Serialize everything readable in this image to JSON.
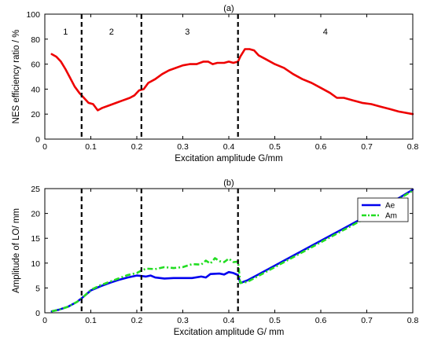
{
  "chart_data": [
    {
      "type": "line",
      "title": "(a)",
      "xlabel": "Excitation amplitude G/mm",
      "ylabel": "NES efficiency ratio / %",
      "xlim": [
        0,
        0.8
      ],
      "ylim": [
        0,
        100
      ],
      "xticks": [
        "0",
        "0.1",
        "0.2",
        "0.3",
        "0.4",
        "0.5",
        "0.6",
        "0.7",
        "0.8"
      ],
      "yticks": [
        "0",
        "20",
        "40",
        "60",
        "80",
        "100"
      ],
      "grid": false,
      "region_boundaries": [
        0.08,
        0.21,
        0.42
      ],
      "region_labels": [
        {
          "text": "1",
          "x": 0.045
        },
        {
          "text": "2",
          "x": 0.145
        },
        {
          "text": "3",
          "x": 0.31
        },
        {
          "text": "4",
          "x": 0.61
        }
      ],
      "series": [
        {
          "color": "#ee0000",
          "style": "solid",
          "points": [
            [
              0.015,
              68
            ],
            [
              0.025,
              66
            ],
            [
              0.035,
              62
            ],
            [
              0.045,
              56
            ],
            [
              0.055,
              49
            ],
            [
              0.065,
              42
            ],
            [
              0.075,
              37
            ],
            [
              0.085,
              33
            ],
            [
              0.095,
              29
            ],
            [
              0.105,
              28
            ],
            [
              0.115,
              23
            ],
            [
              0.125,
              25
            ],
            [
              0.14,
              27
            ],
            [
              0.155,
              29
            ],
            [
              0.17,
              31
            ],
            [
              0.185,
              33
            ],
            [
              0.195,
              35
            ],
            [
              0.205,
              39
            ],
            [
              0.215,
              40
            ],
            [
              0.225,
              45
            ],
            [
              0.24,
              48
            ],
            [
              0.255,
              52
            ],
            [
              0.27,
              55
            ],
            [
              0.285,
              57
            ],
            [
              0.3,
              59
            ],
            [
              0.315,
              60
            ],
            [
              0.33,
              60
            ],
            [
              0.345,
              62
            ],
            [
              0.355,
              62
            ],
            [
              0.365,
              60
            ],
            [
              0.375,
              61
            ],
            [
              0.39,
              61
            ],
            [
              0.4,
              62
            ],
            [
              0.41,
              61
            ],
            [
              0.42,
              62
            ],
            [
              0.425,
              66
            ],
            [
              0.435,
              72
            ],
            [
              0.445,
              72
            ],
            [
              0.455,
              71
            ],
            [
              0.465,
              67
            ],
            [
              0.48,
              64
            ],
            [
              0.5,
              60
            ],
            [
              0.52,
              57
            ],
            [
              0.54,
              52
            ],
            [
              0.56,
              48
            ],
            [
              0.58,
              45
            ],
            [
              0.6,
              41
            ],
            [
              0.62,
              37
            ],
            [
              0.635,
              33
            ],
            [
              0.65,
              33
            ],
            [
              0.67,
              31
            ],
            [
              0.69,
              29
            ],
            [
              0.71,
              28
            ],
            [
              0.73,
              26
            ],
            [
              0.75,
              24
            ],
            [
              0.77,
              22
            ],
            [
              0.8,
              20
            ]
          ]
        }
      ]
    },
    {
      "type": "line",
      "title": "(b)",
      "xlabel": "Excitation amplitude G/ mm",
      "ylabel": "Amplitude of LO/ mm",
      "xlim": [
        0,
        0.8
      ],
      "ylim": [
        0,
        25
      ],
      "xticks": [
        "0",
        "0.1",
        "0.2",
        "0.3",
        "0.4",
        "0.5",
        "0.6",
        "0.7",
        "0.8"
      ],
      "yticks": [
        "0",
        "5",
        "10",
        "15",
        "20",
        "25"
      ],
      "grid": false,
      "legend": "top-right",
      "region_boundaries": [
        0.08,
        0.21,
        0.42
      ],
      "series": [
        {
          "name": "Ae",
          "color": "#0000ee",
          "style": "solid",
          "points": [
            [
              0.015,
              0.3
            ],
            [
              0.03,
              0.6
            ],
            [
              0.05,
              1.2
            ],
            [
              0.07,
              2.2
            ],
            [
              0.085,
              3.3
            ],
            [
              0.1,
              4.5
            ],
            [
              0.12,
              5.3
            ],
            [
              0.14,
              6
            ],
            [
              0.16,
              6.6
            ],
            [
              0.18,
              7.1
            ],
            [
              0.2,
              7.5
            ],
            [
              0.21,
              7.4
            ],
            [
              0.22,
              7.3
            ],
            [
              0.23,
              7.5
            ],
            [
              0.24,
              7.1
            ],
            [
              0.26,
              6.9
            ],
            [
              0.28,
              7
            ],
            [
              0.3,
              7
            ],
            [
              0.32,
              7
            ],
            [
              0.34,
              7.3
            ],
            [
              0.35,
              7.1
            ],
            [
              0.36,
              7.8
            ],
            [
              0.38,
              7.9
            ],
            [
              0.39,
              7.7
            ],
            [
              0.4,
              8.2
            ],
            [
              0.41,
              8
            ],
            [
              0.42,
              7.6
            ],
            [
              0.425,
              6
            ],
            [
              0.44,
              6.5
            ],
            [
              0.46,
              7.5
            ],
            [
              0.5,
              9.5
            ],
            [
              0.55,
              12
            ],
            [
              0.6,
              14.5
            ],
            [
              0.65,
              17
            ],
            [
              0.7,
              19.5
            ],
            [
              0.75,
              22
            ],
            [
              0.8,
              24.8
            ]
          ]
        },
        {
          "name": "Am",
          "color": "#22dd22",
          "style": "dashdot",
          "points": [
            [
              0.015,
              0.3
            ],
            [
              0.03,
              0.6
            ],
            [
              0.05,
              1.2
            ],
            [
              0.07,
              2.2
            ],
            [
              0.085,
              3.3
            ],
            [
              0.1,
              4.6
            ],
            [
              0.12,
              5.5
            ],
            [
              0.14,
              6.2
            ],
            [
              0.16,
              6.9
            ],
            [
              0.18,
              7.6
            ],
            [
              0.2,
              8
            ],
            [
              0.21,
              8.5
            ],
            [
              0.22,
              8.9
            ],
            [
              0.24,
              8.8
            ],
            [
              0.26,
              9.2
            ],
            [
              0.28,
              9
            ],
            [
              0.3,
              9.2
            ],
            [
              0.32,
              9.8
            ],
            [
              0.34,
              9.7
            ],
            [
              0.35,
              10.5
            ],
            [
              0.36,
              9.9
            ],
            [
              0.37,
              11
            ],
            [
              0.38,
              10.4
            ],
            [
              0.39,
              10.2
            ],
            [
              0.4,
              10.9
            ],
            [
              0.41,
              10.2
            ],
            [
              0.42,
              10.3
            ],
            [
              0.425,
              6
            ],
            [
              0.44,
              6.2
            ],
            [
              0.46,
              7.2
            ],
            [
              0.5,
              9.2
            ],
            [
              0.55,
              11.7
            ],
            [
              0.6,
              14.2
            ],
            [
              0.65,
              16.7
            ],
            [
              0.7,
              19.2
            ],
            [
              0.75,
              21.8
            ],
            [
              0.8,
              24.6
            ]
          ]
        }
      ]
    }
  ]
}
